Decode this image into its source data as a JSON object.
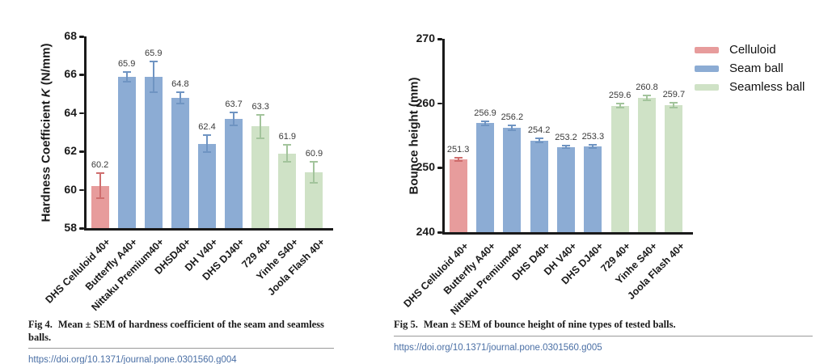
{
  "colors": {
    "celluloid": "#e79c9c",
    "celluloid_err": "#cf6e6e",
    "seam": "#8cacd4",
    "seam_err": "#6f94c2",
    "seamless": "#cfe2c6",
    "seamless_err": "#a3c49c",
    "axis": "#1a1a1a",
    "link": "#4a6fa5"
  },
  "legend": {
    "items": [
      {
        "label": "Celluloid",
        "color_key": "celluloid"
      },
      {
        "label": "Seam ball",
        "color_key": "seam"
      },
      {
        "label": "Seamless ball",
        "color_key": "seamless"
      }
    ]
  },
  "figures": [
    {
      "caption_prefix": "Fig 4.",
      "caption": "Mean ± SEM of hardness coefficient of the seam and seamless balls.",
      "link": "https://doi.org/10.1371/journal.pone.0301560.g004"
    },
    {
      "caption_prefix": "Fig 5.",
      "caption": "Mean ± SEM of bounce height of nine types of tested balls.",
      "link": "https://doi.org/10.1371/journal.pone.0301560.g005"
    }
  ],
  "chart_data": [
    {
      "type": "bar",
      "title": "",
      "xlabel": "",
      "ylabel_segments": [
        {
          "text": "Hardness Coefficient ",
          "italic": false
        },
        {
          "text": "K",
          "italic": true
        },
        {
          "text": " (N/mm)",
          "italic": false
        }
      ],
      "categories": [
        "DHS Celluloid 40+",
        "Butterfly A40+",
        "Nittaku Premium40+",
        "DHSD40+",
        "DH V40+",
        "DHS DJ40+",
        "729 40+",
        "Yinhe S40+",
        "Joola Flash 40+"
      ],
      "values": [
        60.2,
        65.9,
        65.9,
        64.8,
        62.4,
        63.7,
        63.3,
        61.9,
        60.9
      ],
      "errors": [
        0.65,
        0.25,
        0.8,
        0.3,
        0.45,
        0.35,
        0.6,
        0.45,
        0.55
      ],
      "groups": [
        "celluloid",
        "seam",
        "seam",
        "seam",
        "seam",
        "seam",
        "seamless",
        "seamless",
        "seamless"
      ],
      "ylim": [
        58,
        68
      ],
      "yticks": [
        58,
        60,
        62,
        64,
        66,
        68
      ],
      "grid": false,
      "legend": null
    },
    {
      "type": "bar",
      "title": "",
      "xlabel": "",
      "ylabel_segments": [
        {
          "text": "Bounce height (mm)",
          "italic": false
        }
      ],
      "categories": [
        "DHS Celluloid 40+",
        "Butterfly A40+",
        "Nittaku Premium40+",
        "DHS D40+",
        "DH V40+",
        "DHS DJ40+",
        "729 40+",
        "Yinhe S40+",
        "Joola Flash 40+"
      ],
      "values": [
        251.3,
        256.9,
        256.2,
        254.2,
        253.2,
        253.3,
        259.6,
        260.8,
        259.7
      ],
      "errors": [
        0.3,
        0.3,
        0.4,
        0.3,
        0.2,
        0.25,
        0.3,
        0.4,
        0.35
      ],
      "groups": [
        "celluloid",
        "seam",
        "seam",
        "seam",
        "seam",
        "seam",
        "seamless",
        "seamless",
        "seamless"
      ],
      "ylim": [
        240,
        270
      ],
      "yticks": [
        240,
        250,
        260,
        270
      ],
      "grid": false,
      "legend": [
        "Celluloid",
        "Seam ball",
        "Seamless ball"
      ],
      "legend_position": "upper right, outside plot"
    }
  ]
}
